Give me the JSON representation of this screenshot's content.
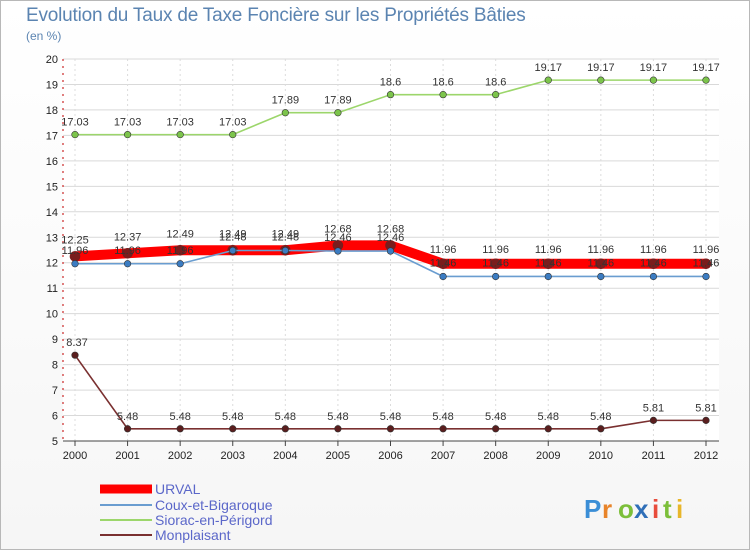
{
  "chart_data": {
    "type": "line",
    "title": "Evolution du Taux de Taxe Foncière sur les Propriétés Bâties",
    "ylabel": "(en %)",
    "xlabel": "",
    "x": [
      "2000",
      "2001",
      "2002",
      "2003",
      "2004",
      "2005",
      "2006",
      "2007",
      "2008",
      "2009",
      "2010",
      "2011",
      "2012"
    ],
    "ylim": [
      5,
      20
    ],
    "yticks": [
      "5",
      "6",
      "7",
      "8",
      "9",
      "10",
      "11",
      "12",
      "13",
      "14",
      "15",
      "16",
      "17",
      "18",
      "19",
      "20"
    ],
    "series": [
      {
        "name": "URVAL",
        "color": "#ff0000",
        "values": [
          12.25,
          12.37,
          12.49,
          12.49,
          12.49,
          12.68,
          12.68,
          11.96,
          11.96,
          11.96,
          11.96,
          11.96,
          11.96
        ],
        "labels": [
          "12.25",
          "12.37",
          "12.49",
          "12.49",
          "12.49",
          "12.68",
          "12.68",
          "11.96",
          "11.96",
          "11.96",
          "11.96",
          "11.96",
          "11.96"
        ]
      },
      {
        "name": "Coux-et-Bigaroque",
        "color": "#6a9dd0",
        "values": [
          11.96,
          11.96,
          11.96,
          12.48,
          12.48,
          12.46,
          12.46,
          11.46,
          11.46,
          11.46,
          11.46,
          11.46,
          11.46
        ],
        "labels": [
          "11.96",
          "11.96",
          "11.96",
          "12.48",
          "12.48",
          "12.46",
          "12.46",
          "11.46",
          "11.46",
          "11.46",
          "11.46",
          "11.46",
          "11.46"
        ]
      },
      {
        "name": "Siorac-en-Périgord",
        "color": "#9cd66b",
        "values": [
          17.03,
          17.03,
          17.03,
          17.03,
          17.89,
          17.89,
          18.6,
          18.6,
          18.6,
          19.17,
          19.17,
          19.17,
          19.17
        ],
        "labels": [
          "17.03",
          "17.03",
          "17.03",
          "17.03",
          "17.89",
          "17.89",
          "18.6",
          "18.6",
          "18.6",
          "19.17",
          "19.17",
          "19.17",
          "19.17"
        ]
      },
      {
        "name": "Monplaisant",
        "color": "#7a3030",
        "values": [
          8.37,
          5.48,
          5.48,
          5.48,
          5.48,
          5.48,
          5.48,
          5.48,
          5.48,
          5.48,
          5.48,
          5.81,
          5.81
        ],
        "labels": [
          "8.37",
          "5.48",
          "5.48",
          "5.48",
          "5.48",
          "5.48",
          "5.48",
          "5.48",
          "5.48",
          "5.48",
          "5.48",
          "5.81",
          "5.81"
        ]
      }
    ],
    "legend": [
      "URVAL",
      "Coux-et-Bigaroque",
      "Siorac-en-Périgord",
      "Monplaisant"
    ]
  },
  "brand": {
    "letters": [
      "P",
      "r",
      "o",
      "x",
      "i",
      "t",
      "i"
    ],
    "colors": [
      "#3b8ed6",
      "#e8842a",
      "#7cbf3a",
      "#2f6fb8",
      "#e84c3c",
      "#7cbf3a",
      "#e8b62a"
    ]
  }
}
